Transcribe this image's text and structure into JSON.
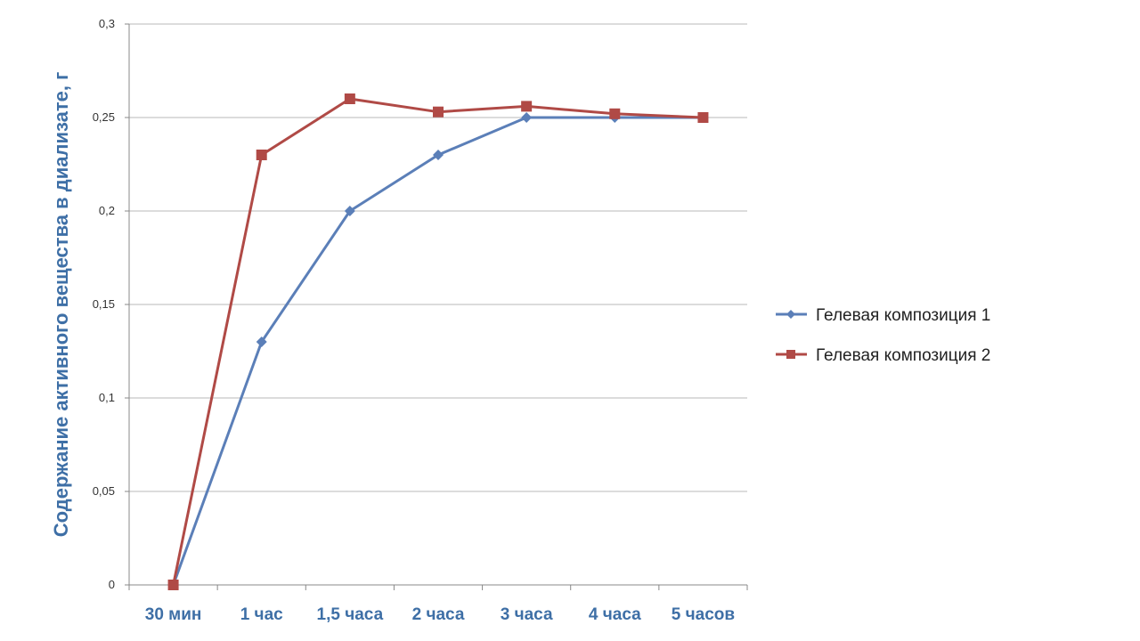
{
  "chart_data": {
    "type": "line",
    "title": "",
    "xlabel": "",
    "ylabel": "Содержание активного вещества в диализате, г",
    "categories": [
      "30 мин",
      "1 час",
      "1,5 часа",
      "2 часа",
      "3 часа",
      "4 часа",
      "5 часов"
    ],
    "y_ticks": [
      "0",
      "0,05",
      "0,1",
      "0,15",
      "0,2",
      "0,25",
      "0,3"
    ],
    "ylim": [
      0,
      0.3
    ],
    "grid": true,
    "legend_position": "right",
    "series": [
      {
        "name": "Гелевая композиция 1",
        "marker": "diamond",
        "color": "#5b7fb8",
        "values": [
          0,
          0.13,
          0.2,
          0.23,
          0.25,
          0.25,
          0.25
        ]
      },
      {
        "name": "Гелевая композиция 2",
        "marker": "square",
        "color": "#b04a46",
        "values": [
          0,
          0.23,
          0.26,
          0.253,
          0.256,
          0.252,
          0.25
        ]
      }
    ],
    "colors": {
      "axis_label": "#3e6fa6",
      "grid": "#b8b8b8"
    }
  }
}
